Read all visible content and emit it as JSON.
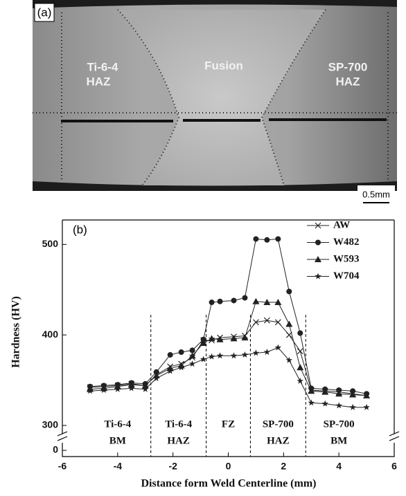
{
  "micrograph": {
    "panel_label": "(a)",
    "labels": [
      [
        "Ti-6-4",
        "HAZ"
      ],
      [
        "Fusion"
      ],
      [
        "SP-700",
        "HAZ"
      ]
    ],
    "scale_bar": "0.5mm"
  },
  "chart_data": {
    "type": "line",
    "panel_label": "(b)",
    "x_label": "Distance form Weld Centerline (mm)",
    "y_label": "Hardness (HV)",
    "x": [
      -5,
      -4.5,
      -4,
      -3.5,
      -3,
      -2.6,
      -2.1,
      -1.7,
      -1.3,
      -0.9,
      -0.6,
      -0.3,
      0.2,
      0.6,
      1.0,
      1.4,
      1.8,
      2.2,
      2.6,
      3.0,
      3.5,
      4,
      4.5,
      5
    ],
    "series": [
      {
        "name": "AW",
        "color": "#222222",
        "marker": "x",
        "values": [
          342,
          343,
          344,
          346,
          344,
          356,
          365,
          368,
          375,
          394,
          394,
          397,
          398,
          399,
          414,
          416,
          414,
          400,
          382,
          339,
          338,
          337,
          335,
          333
        ]
      },
      {
        "name": "W482",
        "color": "#222222",
        "marker": "circle",
        "values": [
          343,
          344,
          345,
          347,
          346,
          359,
          378,
          381,
          383,
          395,
          436,
          437,
          438,
          441,
          506,
          505,
          506,
          448,
          402,
          341,
          340,
          339,
          338,
          335
        ]
      },
      {
        "name": "W593",
        "color": "#222222",
        "marker": "triangle",
        "values": [
          340,
          341,
          343,
          345,
          344,
          355,
          363,
          366,
          377,
          391,
          396,
          395,
          396,
          397,
          437,
          436,
          436,
          412,
          364,
          338,
          337,
          335,
          334,
          333
        ]
      },
      {
        "name": "W704",
        "color": "#222222",
        "marker": "star",
        "values": [
          338,
          339,
          340,
          341,
          340,
          352,
          360,
          364,
          368,
          373,
          376,
          377,
          377,
          378,
          380,
          381,
          386,
          372,
          349,
          325,
          324,
          322,
          320,
          320
        ]
      }
    ],
    "xlim": [
      -6,
      6
    ],
    "xticks": [
      -6,
      -4,
      -2,
      0,
      2,
      4,
      6
    ],
    "ylim": [
      300,
      527
    ],
    "yticks": [
      0,
      300,
      400,
      500
    ],
    "axis_break": true,
    "region_lines": [
      -2.8,
      -0.8,
      0.8,
      2.8
    ],
    "regions": [
      {
        "x": -4,
        "text": [
          "Ti-6-4",
          "BM"
        ]
      },
      {
        "x": -1.8,
        "text": [
          "Ti-6-4",
          "HAZ"
        ]
      },
      {
        "x": 0,
        "text": [
          "FZ"
        ]
      },
      {
        "x": 1.8,
        "text": [
          "SP-700",
          "HAZ"
        ]
      },
      {
        "x": 4,
        "text": [
          "SP-700",
          "BM"
        ]
      }
    ],
    "legend": "upper right"
  }
}
